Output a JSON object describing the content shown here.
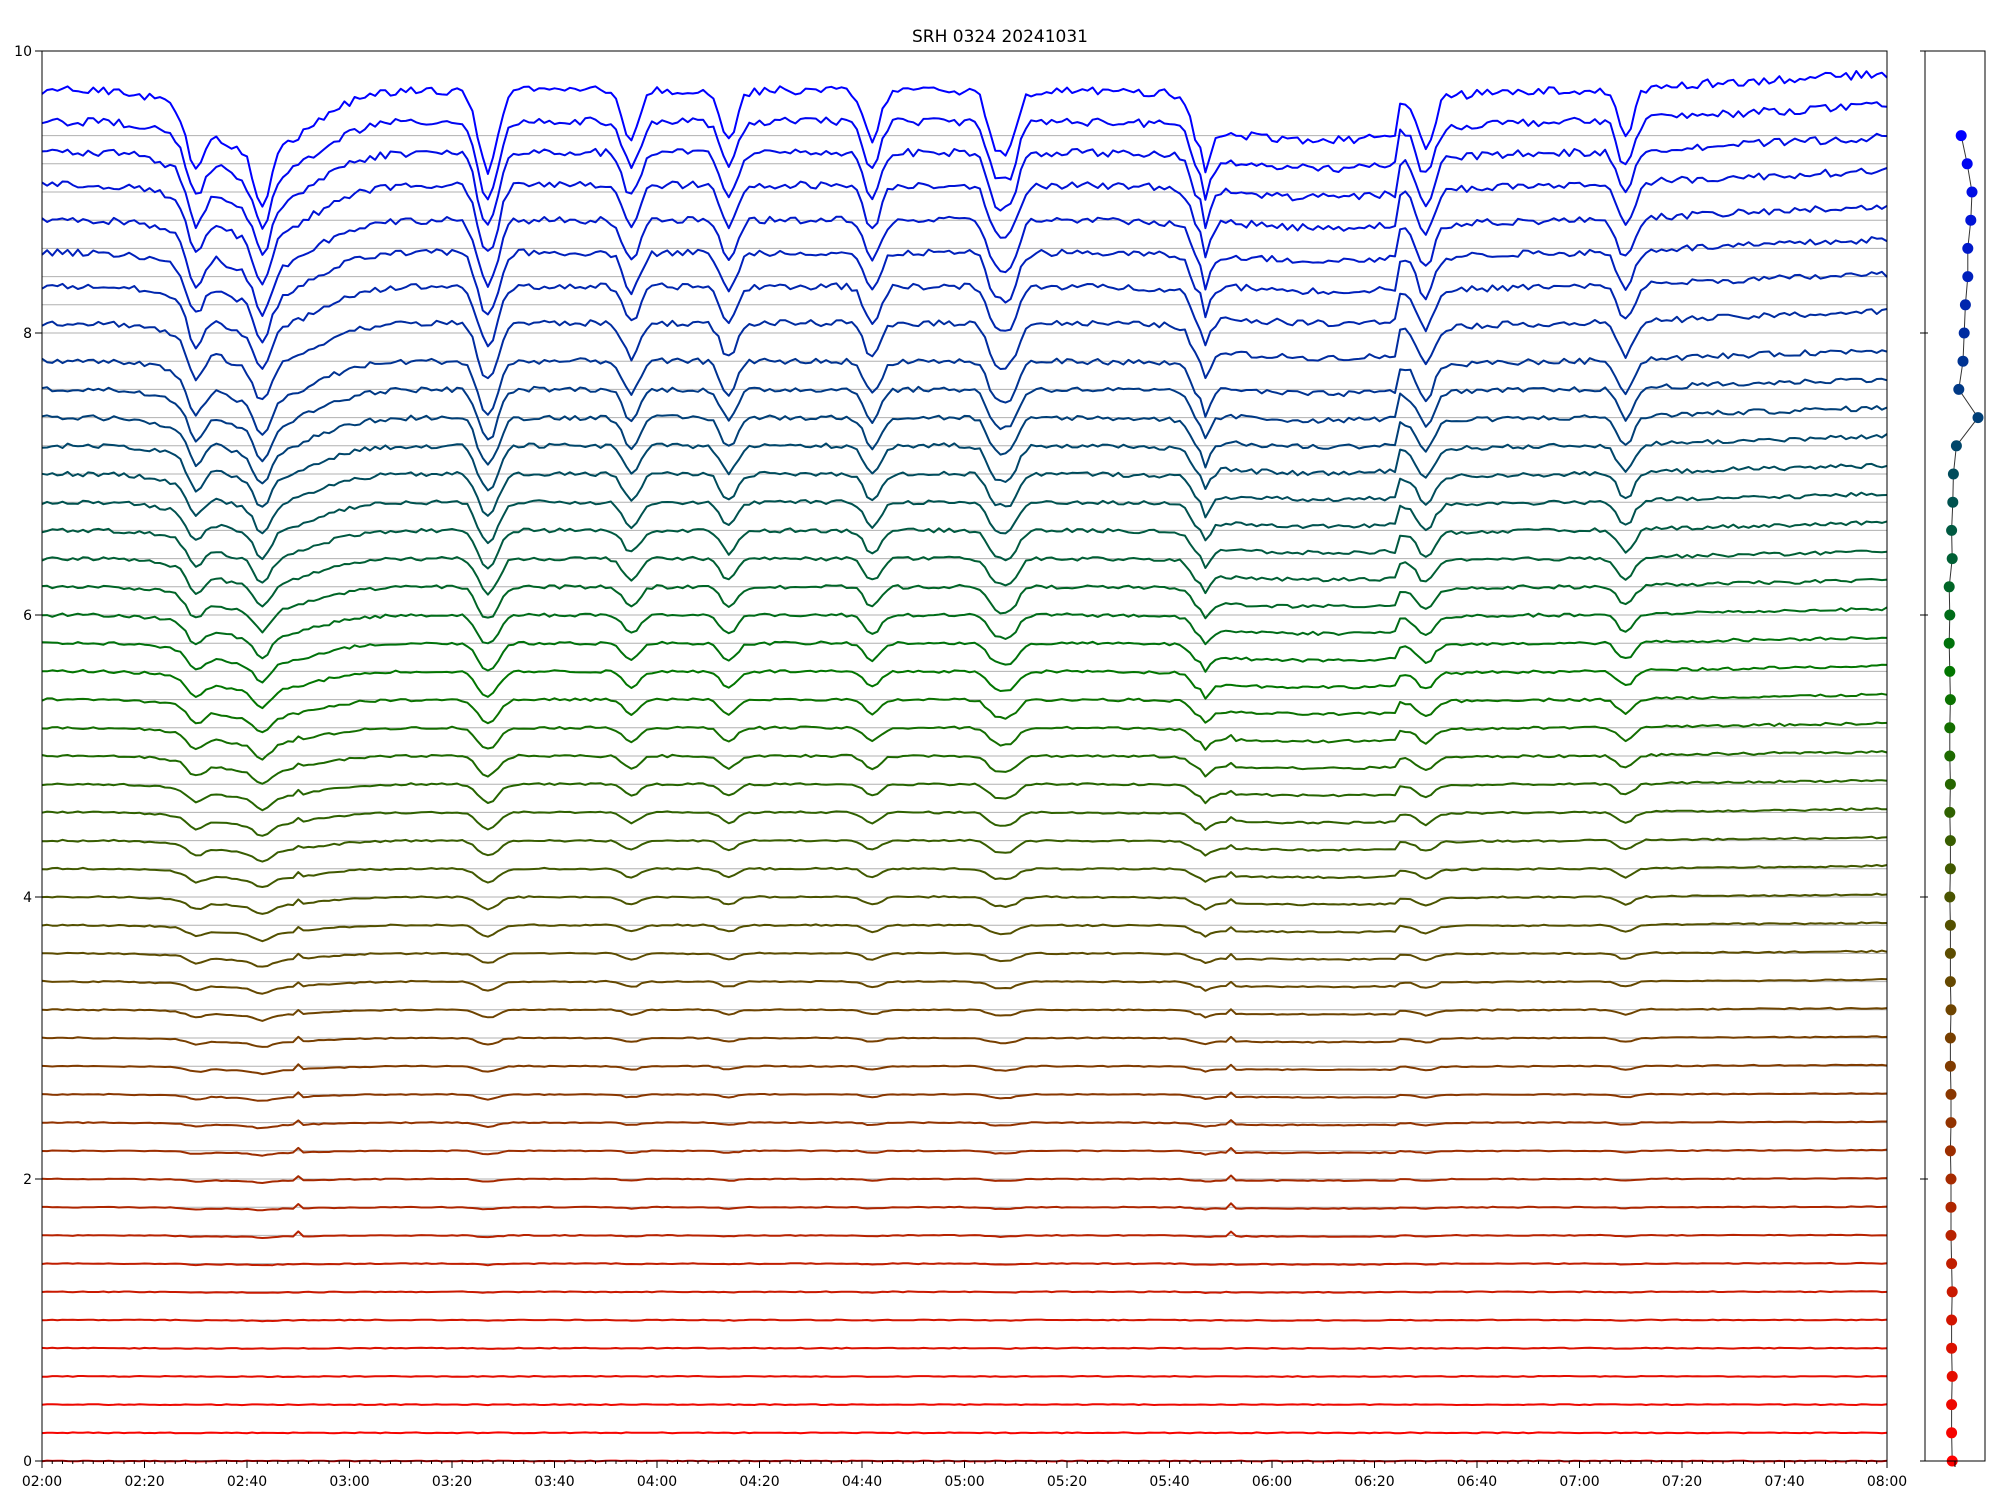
{
  "chart_data": {
    "type": "line",
    "title": "SRH 0324 20241031",
    "xlabel": "",
    "ylabel": "",
    "x_ticks": [
      "02:00",
      "02:20",
      "02:40",
      "03:00",
      "03:20",
      "03:40",
      "04:00",
      "04:20",
      "04:40",
      "05:00",
      "05:20",
      "05:40",
      "06:00",
      "06:20",
      "06:40",
      "07:00",
      "07:20",
      "07:40",
      "08:00"
    ],
    "x_range_minutes": [
      0,
      360
    ],
    "y_ticks": [
      "0",
      "2",
      "4",
      "6",
      "8",
      "10"
    ],
    "ylim": [
      0,
      10
    ],
    "grid": "horizontal lines at each trace baseline",
    "trace_count": 48,
    "trace_spacing": 0.2,
    "trace_baselines": [
      0.0,
      0.2,
      0.4,
      0.6,
      0.8,
      1.0,
      1.2,
      1.4,
      1.6,
      1.8,
      2.0,
      2.2,
      2.4,
      2.6,
      2.8,
      3.0,
      3.2,
      3.4,
      3.6,
      3.8,
      4.0,
      4.2,
      4.4,
      4.6,
      4.8,
      5.0,
      5.2,
      5.4,
      5.6,
      5.8,
      6.0,
      6.2,
      6.4,
      6.6,
      6.8,
      7.0,
      7.2,
      7.4,
      7.6,
      7.8,
      8.0,
      8.2,
      8.4,
      8.6,
      8.8,
      9.0,
      9.2,
      9.4
    ],
    "trace_levels": [
      0.0,
      0.2,
      0.4,
      0.6,
      0.8,
      1.0,
      1.2,
      1.4,
      1.6,
      1.8,
      2.0,
      2.2,
      2.4,
      2.6,
      2.8,
      3.0,
      3.2,
      3.4,
      3.6,
      3.8,
      4.0,
      4.2,
      4.4,
      4.6,
      4.8,
      5.0,
      5.2,
      5.4,
      5.6,
      5.8,
      6.0,
      6.2,
      6.4,
      6.6,
      6.8,
      7.0,
      7.2,
      7.4,
      7.6,
      7.8,
      8.07,
      8.33,
      8.57,
      8.8,
      9.05,
      9.28,
      9.5,
      9.72
    ],
    "dip_events_minutes": [
      30,
      43,
      86,
      88,
      115,
      134,
      162,
      186,
      189,
      226,
      270,
      309
    ],
    "spike_events_minutes": [
      50,
      232
    ],
    "side_panel": {
      "x_values": [
        0.12,
        0.11,
        0.11,
        0.12,
        0.11,
        0.11,
        0.12,
        0.11,
        0.1,
        0.1,
        0.1,
        0.09,
        0.1,
        0.1,
        0.09,
        0.09,
        0.1,
        0.09,
        0.09,
        0.09,
        0.08,
        0.09,
        0.09,
        0.08,
        0.09,
        0.08,
        0.08,
        0.09,
        0.08,
        0.07,
        0.08,
        0.07,
        0.12,
        0.11,
        0.13,
        0.14,
        0.19,
        0.55,
        0.23,
        0.3,
        0.32,
        0.34,
        0.38,
        0.38,
        0.43,
        0.45,
        0.37,
        0.27
      ],
      "y_values": [
        0.0,
        0.2,
        0.4,
        0.6,
        0.8,
        1.0,
        1.2,
        1.4,
        1.6,
        1.8,
        2.0,
        2.2,
        2.4,
        2.6,
        2.8,
        3.0,
        3.2,
        3.4,
        3.6,
        3.8,
        4.0,
        4.2,
        4.4,
        4.6,
        4.8,
        5.0,
        5.2,
        5.4,
        5.6,
        5.8,
        6.0,
        6.2,
        6.4,
        6.6,
        6.8,
        7.0,
        7.2,
        7.4,
        7.6,
        7.8,
        8.0,
        8.2,
        8.4,
        8.6,
        8.8,
        9.0,
        9.2,
        9.4
      ]
    },
    "colors": {
      "low_trace": "#ff0000",
      "mid_trace": "#007700",
      "high_trace": "#0000ff",
      "grid": "#b0b0b0"
    }
  }
}
